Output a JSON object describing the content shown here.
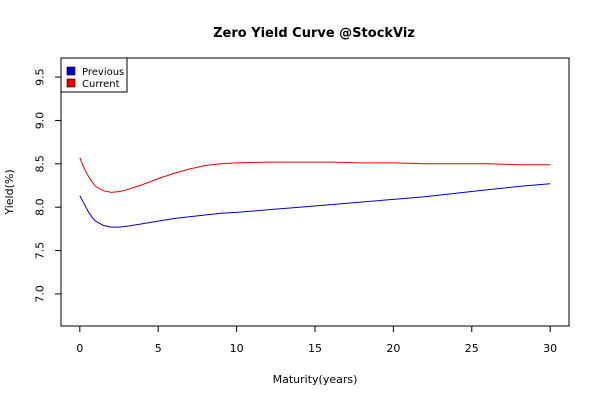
{
  "chart_data": {
    "type": "line",
    "title": "Zero Yield Curve @StockViz",
    "xlabel": "Maturity(years)",
    "ylabel": "Yield(%)",
    "xlim": [
      -1.2,
      31.2
    ],
    "ylim": [
      6.63,
      9.72
    ],
    "x_ticks": [
      0,
      5,
      10,
      15,
      20,
      25,
      30
    ],
    "y_ticks": [
      7.0,
      7.5,
      8.0,
      8.5,
      9.0,
      9.5
    ],
    "x_tick_labels": [
      "0",
      "5",
      "10",
      "15",
      "20",
      "25",
      "30"
    ],
    "y_tick_labels": [
      "7.0",
      "7.5",
      "8.0",
      "8.5",
      "9.0",
      "9.5"
    ],
    "grid": false,
    "legend_position": "top-left",
    "x": [
      0,
      0.25,
      0.5,
      0.75,
      1,
      1.5,
      2,
      2.5,
      3,
      4,
      5,
      6,
      7,
      8,
      9,
      10,
      12,
      14,
      16,
      18,
      20,
      22,
      24,
      26,
      28,
      30
    ],
    "series": [
      {
        "name": "Previous",
        "color": "#0000cc",
        "values": [
          8.13,
          8.05,
          7.96,
          7.89,
          7.84,
          7.79,
          7.77,
          7.77,
          7.78,
          7.81,
          7.84,
          7.87,
          7.89,
          7.91,
          7.93,
          7.94,
          7.97,
          8.0,
          8.03,
          8.06,
          8.09,
          8.12,
          8.16,
          8.2,
          8.24,
          8.27
        ]
      },
      {
        "name": "Current",
        "color": "#ee0000",
        "values": [
          8.57,
          8.46,
          8.37,
          8.3,
          8.24,
          8.19,
          8.17,
          8.18,
          8.2,
          8.26,
          8.33,
          8.39,
          8.44,
          8.48,
          8.5,
          8.51,
          8.52,
          8.52,
          8.52,
          8.51,
          8.51,
          8.5,
          8.5,
          8.5,
          8.49,
          8.49
        ]
      }
    ]
  }
}
